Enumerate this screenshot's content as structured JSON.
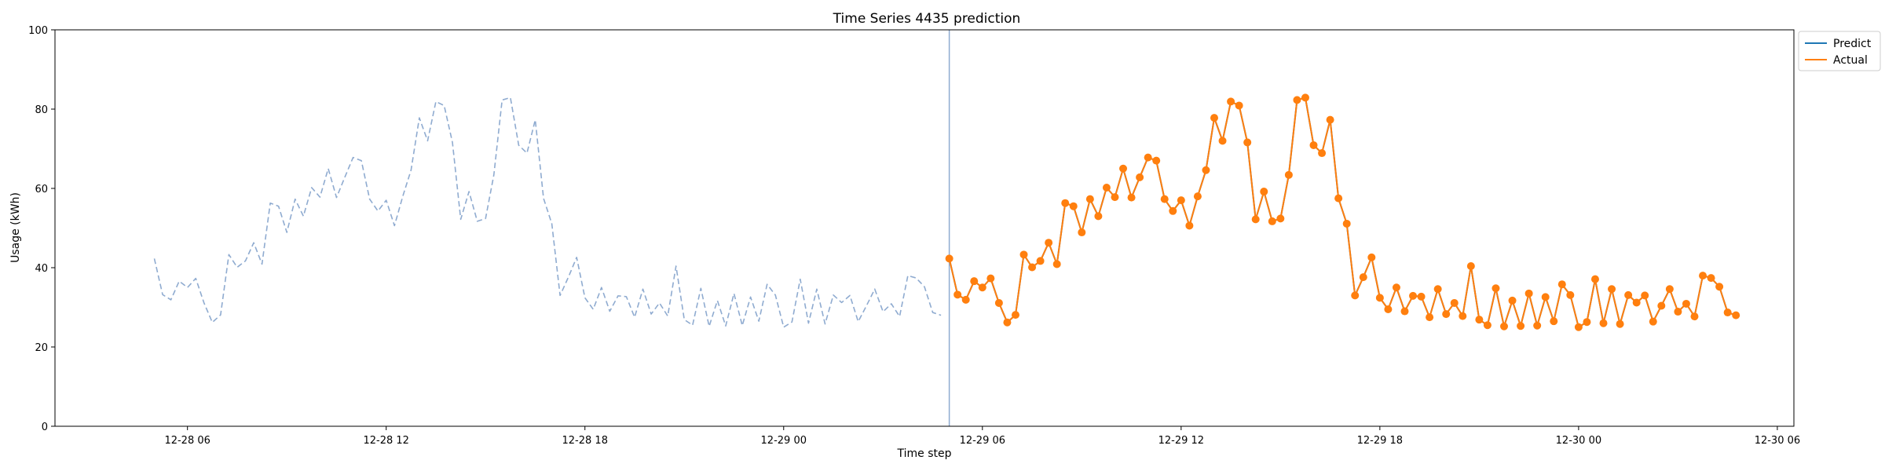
{
  "chart_data": {
    "type": "line",
    "title": "Time Series 4435 prediction",
    "xlabel": "Time step",
    "ylabel": "Usage (kWh)",
    "ylim": [
      0,
      100
    ],
    "yticks": [
      0,
      20,
      40,
      60,
      80,
      100
    ],
    "xlim": [
      "2023-12-28 02:00",
      "2023-12-30 06:30"
    ],
    "xticks": [
      {
        "t": "2023-12-28 06:00",
        "label": "12-28 06"
      },
      {
        "t": "2023-12-28 12:00",
        "label": "12-28 12"
      },
      {
        "t": "2023-12-28 18:00",
        "label": "12-28 18"
      },
      {
        "t": "2023-12-29 00:00",
        "label": "12-29 00"
      },
      {
        "t": "2023-12-29 06:00",
        "label": "12-29 06"
      },
      {
        "t": "2023-12-29 12:00",
        "label": "12-29 12"
      },
      {
        "t": "2023-12-29 18:00",
        "label": "12-29 18"
      },
      {
        "t": "2023-12-30 00:00",
        "label": "12-30 00"
      },
      {
        "t": "2023-12-30 06:00",
        "label": "12-30 06"
      }
    ],
    "forecast_start": "2023-12-29 05:00",
    "legend_position": "outside top-right",
    "series": [
      {
        "name": "history",
        "style": "dashed",
        "color": "#8fabd0",
        "start": "2023-12-28 05:00",
        "step_minutes": 15,
        "values": [
          42.3,
          33.2,
          31.9,
          36.6,
          35.0,
          37.3,
          31.1,
          26.2,
          28.1,
          43.3,
          40.1,
          41.7,
          46.3,
          40.9,
          56.3,
          55.5,
          48.9,
          57.3,
          53.0,
          60.2,
          57.8,
          65.0,
          57.7,
          62.8,
          67.8,
          67.0,
          57.3,
          54.3,
          57.0,
          50.6,
          58.0,
          64.6,
          77.8,
          72.0,
          81.9,
          80.9,
          71.6,
          52.2,
          59.2,
          51.7,
          52.4,
          63.4,
          82.3,
          82.9,
          70.9,
          68.9,
          77.3,
          57.5,
          51.1,
          33.0,
          37.6,
          42.6,
          32.4,
          29.5,
          35.0,
          29.0,
          32.9,
          32.7,
          27.5,
          34.6,
          28.3,
          31.1,
          27.8,
          40.4,
          26.9,
          25.5,
          34.8,
          25.2,
          31.7,
          25.3,
          33.5,
          25.4,
          32.6,
          26.5,
          35.8,
          33.1,
          25.0,
          26.3,
          37.1,
          26.0,
          34.6,
          25.8,
          33.1,
          31.2,
          33.0,
          26.4,
          30.4,
          34.6,
          28.9,
          30.9,
          27.7,
          38.0,
          37.4,
          35.2,
          28.7,
          28.0
        ]
      },
      {
        "name": "Predict",
        "color": "#1f77b4",
        "start": "2023-12-29 05:00",
        "step_minutes": 15,
        "values": [
          42.3,
          33.2,
          31.9,
          36.6,
          35.0,
          37.3,
          31.1,
          26.2,
          28.1,
          43.3,
          40.1,
          41.7,
          46.3,
          40.9,
          56.3,
          55.5,
          48.9,
          57.3,
          53.0,
          60.2,
          57.8,
          65.0,
          57.7,
          62.8,
          67.8,
          67.0,
          57.3,
          54.3,
          57.0,
          50.6,
          58.0,
          64.6,
          77.8,
          72.0,
          81.9,
          80.9,
          71.6,
          52.2,
          59.2,
          51.7,
          52.4,
          63.4,
          82.3,
          82.9,
          70.9,
          68.9,
          77.3,
          57.5,
          51.1,
          33.0,
          37.6,
          42.6,
          32.4,
          29.5,
          35.0,
          29.0,
          32.9,
          32.7,
          27.5,
          34.6,
          28.3,
          31.1,
          27.8,
          40.4,
          26.9,
          25.5,
          34.8,
          25.2,
          31.7,
          25.3,
          33.5,
          25.4,
          32.6,
          26.5,
          35.8,
          33.1,
          25.0,
          26.3,
          37.1,
          26.0,
          34.6,
          25.8,
          33.1,
          31.2,
          33.0,
          26.4,
          30.4,
          34.6,
          28.9,
          30.9,
          27.7,
          38.0,
          37.4,
          35.2,
          28.7,
          28.0
        ]
      },
      {
        "name": "Actual",
        "color": "#ff7f0e",
        "markers": true,
        "start": "2023-12-29 05:00",
        "step_minutes": 15,
        "values": [
          42.3,
          33.2,
          31.9,
          36.6,
          35.0,
          37.3,
          31.1,
          26.2,
          28.1,
          43.3,
          40.1,
          41.7,
          46.3,
          40.9,
          56.3,
          55.5,
          48.9,
          57.3,
          53.0,
          60.2,
          57.8,
          65.0,
          57.7,
          62.8,
          67.8,
          67.0,
          57.3,
          54.3,
          57.0,
          50.6,
          58.0,
          64.6,
          77.8,
          72.0,
          81.9,
          80.9,
          71.6,
          52.2,
          59.2,
          51.7,
          52.4,
          63.4,
          82.3,
          82.9,
          70.9,
          68.9,
          77.3,
          57.5,
          51.1,
          33.0,
          37.6,
          42.6,
          32.4,
          29.5,
          35.0,
          29.0,
          32.9,
          32.7,
          27.5,
          34.6,
          28.3,
          31.1,
          27.8,
          40.4,
          26.9,
          25.5,
          34.8,
          25.2,
          31.7,
          25.3,
          33.5,
          25.4,
          32.6,
          26.5,
          35.8,
          33.1,
          25.0,
          26.3,
          37.1,
          26.0,
          34.6,
          25.8,
          33.1,
          31.2,
          33.0,
          26.4,
          30.4,
          34.6,
          28.9,
          30.9,
          27.7,
          38.0,
          37.4,
          35.2,
          28.7,
          28.0
        ]
      }
    ],
    "legend": [
      {
        "label": "Predict",
        "color": "#1f77b4"
      },
      {
        "label": "Actual",
        "color": "#ff7f0e"
      }
    ],
    "forecast_line_color": "#8fabd0"
  }
}
